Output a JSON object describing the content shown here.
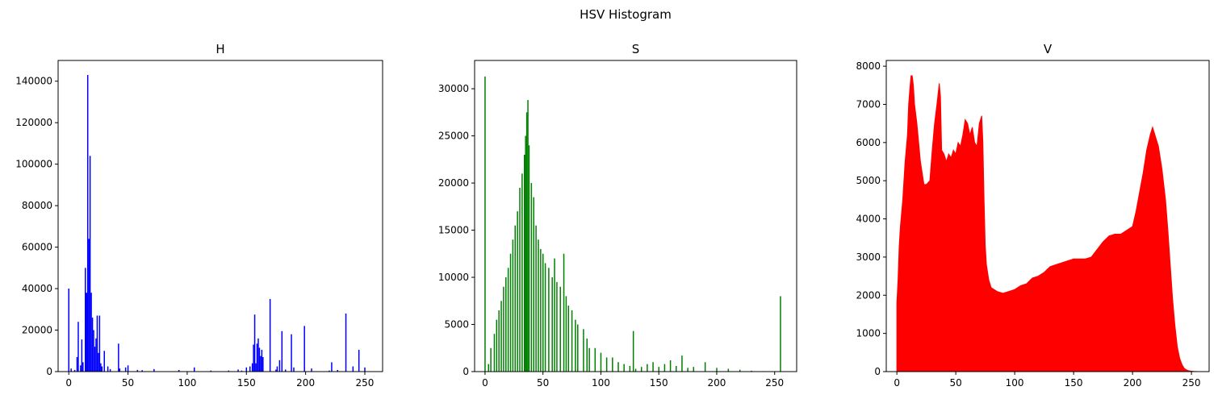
{
  "figure_title": "HSV Histogram",
  "chart_data": [
    {
      "type": "bar",
      "title": "H",
      "color": "#0000ff",
      "xlim": [
        -9,
        265
      ],
      "ylim": [
        0,
        150000
      ],
      "xticks": [
        0,
        50,
        100,
        150,
        200,
        250
      ],
      "yticks": [
        0,
        20000,
        40000,
        60000,
        80000,
        100000,
        120000,
        140000
      ],
      "x": [
        0,
        2,
        5,
        7,
        8,
        10,
        11,
        12,
        14,
        15,
        16,
        17,
        18,
        19,
        20,
        21,
        22,
        23,
        24,
        25,
        26,
        27,
        28,
        30,
        33,
        35,
        42,
        43,
        48,
        50,
        58,
        62,
        72,
        93,
        106,
        120,
        135,
        143,
        146,
        150,
        153,
        155,
        156,
        157,
        158,
        159,
        160,
        161,
        162,
        163,
        164,
        170,
        175,
        176,
        178,
        180,
        183,
        188,
        190,
        199,
        205,
        220,
        222,
        227,
        234,
        240,
        245,
        250
      ],
      "y": [
        40000,
        1500,
        800,
        7000,
        24000,
        3000,
        15500,
        4500,
        50000,
        38000,
        143000,
        64000,
        104000,
        38000,
        26000,
        20000,
        12000,
        16000,
        27000,
        9000,
        27000,
        4000,
        2500,
        10000,
        2500,
        1200,
        13500,
        1500,
        2000,
        3000,
        800,
        700,
        1200,
        800,
        2000,
        500,
        500,
        1000,
        500,
        2000,
        2500,
        4000,
        13000,
        27500,
        4000,
        13500,
        16000,
        11500,
        7500,
        10500,
        7000,
        35000,
        1000,
        2500,
        5500,
        19500,
        1000,
        18000,
        2000,
        22000,
        1500,
        500,
        4500,
        800,
        28000,
        2500,
        10500,
        2000
      ]
    },
    {
      "type": "bar",
      "title": "S",
      "color": "#008000",
      "xlim": [
        -9,
        269
      ],
      "ylim": [
        0,
        33000
      ],
      "xticks": [
        0,
        50,
        100,
        150,
        200,
        250
      ],
      "yticks": [
        0,
        5000,
        10000,
        15000,
        20000,
        25000,
        30000
      ],
      "x": [
        0,
        3,
        5,
        8,
        10,
        12,
        14,
        16,
        18,
        20,
        22,
        24,
        26,
        28,
        30,
        32,
        34,
        35,
        36,
        37,
        38,
        40,
        42,
        44,
        46,
        48,
        50,
        52,
        55,
        58,
        60,
        62,
        65,
        68,
        70,
        72,
        75,
        78,
        80,
        85,
        88,
        90,
        95,
        100,
        105,
        110,
        115,
        120,
        125,
        128,
        130,
        135,
        140,
        145,
        150,
        155,
        160,
        165,
        170,
        175,
        180,
        190,
        200,
        210,
        220,
        230,
        240,
        255
      ],
      "y": [
        31300,
        800,
        2500,
        4000,
        5500,
        6500,
        7500,
        9000,
        10000,
        11000,
        12500,
        14000,
        15500,
        17000,
        19500,
        21000,
        23000,
        25000,
        27500,
        28800,
        24000,
        20000,
        18500,
        15500,
        14000,
        13000,
        12500,
        11500,
        11000,
        10000,
        12000,
        9500,
        9000,
        12500,
        8000,
        7000,
        6500,
        5500,
        5000,
        4500,
        3500,
        2500,
        2500,
        2000,
        1500,
        1500,
        1000,
        800,
        600,
        4300,
        300,
        500,
        800,
        1000,
        500,
        800,
        1200,
        600,
        1700,
        400,
        500,
        1000,
        400,
        300,
        200,
        100,
        50,
        8000
      ]
    },
    {
      "type": "area",
      "title": "V",
      "color": "#ff0000",
      "xlim": [
        -9,
        265
      ],
      "ylim": [
        0,
        8150
      ],
      "xticks": [
        0,
        50,
        100,
        150,
        200,
        250
      ],
      "yticks": [
        0,
        1000,
        2000,
        3000,
        4000,
        5000,
        6000,
        7000,
        8000
      ],
      "x": [
        0,
        1,
        2,
        3,
        5,
        7,
        9,
        10,
        11,
        12,
        13,
        14,
        15,
        17,
        20,
        23,
        25,
        28,
        30,
        32,
        34,
        36,
        37,
        38,
        40,
        42,
        44,
        46,
        48,
        50,
        52,
        54,
        56,
        58,
        60,
        62,
        64,
        66,
        68,
        70,
        72,
        73,
        74,
        75,
        76,
        78,
        80,
        85,
        90,
        95,
        100,
        105,
        110,
        115,
        120,
        125,
        130,
        135,
        140,
        145,
        150,
        155,
        160,
        165,
        170,
        175,
        180,
        185,
        190,
        195,
        200,
        203,
        206,
        209,
        212,
        215,
        217,
        219,
        222,
        225,
        228,
        230,
        232,
        234,
        236,
        238,
        240,
        242,
        244,
        246,
        248,
        250,
        252,
        255
      ],
      "y": [
        1800,
        2400,
        3300,
        3800,
        4500,
        5500,
        6200,
        7000,
        7400,
        7750,
        7750,
        7500,
        7000,
        6500,
        5500,
        4900,
        4900,
        5000,
        5800,
        6500,
        7000,
        7550,
        7200,
        5800,
        5700,
        5500,
        5700,
        5600,
        5800,
        5700,
        6000,
        5900,
        6200,
        6600,
        6500,
        6200,
        6400,
        6000,
        5900,
        6500,
        6700,
        6000,
        4500,
        3300,
        2800,
        2400,
        2200,
        2100,
        2050,
        2100,
        2150,
        2250,
        2300,
        2450,
        2500,
        2600,
        2750,
        2800,
        2850,
        2900,
        2950,
        2950,
        2950,
        3000,
        3200,
        3400,
        3550,
        3600,
        3600,
        3700,
        3800,
        4200,
        4700,
        5200,
        5800,
        6200,
        6400,
        6200,
        5900,
        5300,
        4500,
        3700,
        2800,
        1900,
        1200,
        650,
        350,
        180,
        80,
        40,
        20,
        10,
        5,
        0
      ]
    }
  ]
}
